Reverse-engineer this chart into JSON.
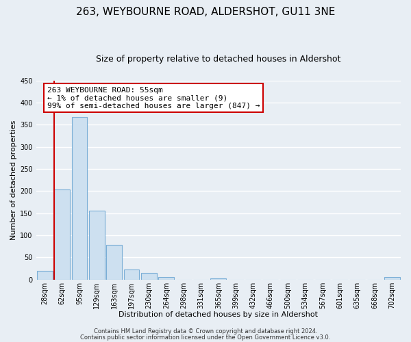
{
  "title": "263, WEYBOURNE ROAD, ALDERSHOT, GU11 3NE",
  "subtitle": "Size of property relative to detached houses in Aldershot",
  "xlabel": "Distribution of detached houses by size in Aldershot",
  "ylabel": "Number of detached properties",
  "bar_labels": [
    "28sqm",
    "62sqm",
    "95sqm",
    "129sqm",
    "163sqm",
    "197sqm",
    "230sqm",
    "264sqm",
    "298sqm",
    "331sqm",
    "365sqm",
    "399sqm",
    "432sqm",
    "466sqm",
    "500sqm",
    "534sqm",
    "567sqm",
    "601sqm",
    "635sqm",
    "668sqm",
    "702sqm"
  ],
  "bar_values": [
    20,
    204,
    367,
    156,
    78,
    22,
    15,
    6,
    0,
    0,
    3,
    0,
    0,
    0,
    0,
    0,
    0,
    0,
    0,
    0,
    5
  ],
  "bar_color": "#cde0f0",
  "bar_edge_color": "#7aaed6",
  "plot_bg_color": "#e8eef4",
  "fig_bg_color": "#e8eef4",
  "grid_color": "#ffffff",
  "ylim": [
    0,
    450
  ],
  "yticks": [
    0,
    50,
    100,
    150,
    200,
    250,
    300,
    350,
    400,
    450
  ],
  "vline_color": "#cc0000",
  "annotation_box_title": "263 WEYBOURNE ROAD: 55sqm",
  "annotation_line1": "← 1% of detached houses are smaller (9)",
  "annotation_line2": "99% of semi-detached houses are larger (847) →",
  "annotation_box_color": "#cc0000",
  "footer_line1": "Contains HM Land Registry data © Crown copyright and database right 2024.",
  "footer_line2": "Contains public sector information licensed under the Open Government Licence v3.0.",
  "title_fontsize": 11,
  "subtitle_fontsize": 9,
  "axis_label_fontsize": 8,
  "tick_fontsize": 7,
  "annotation_fontsize": 8,
  "footer_fontsize": 6
}
